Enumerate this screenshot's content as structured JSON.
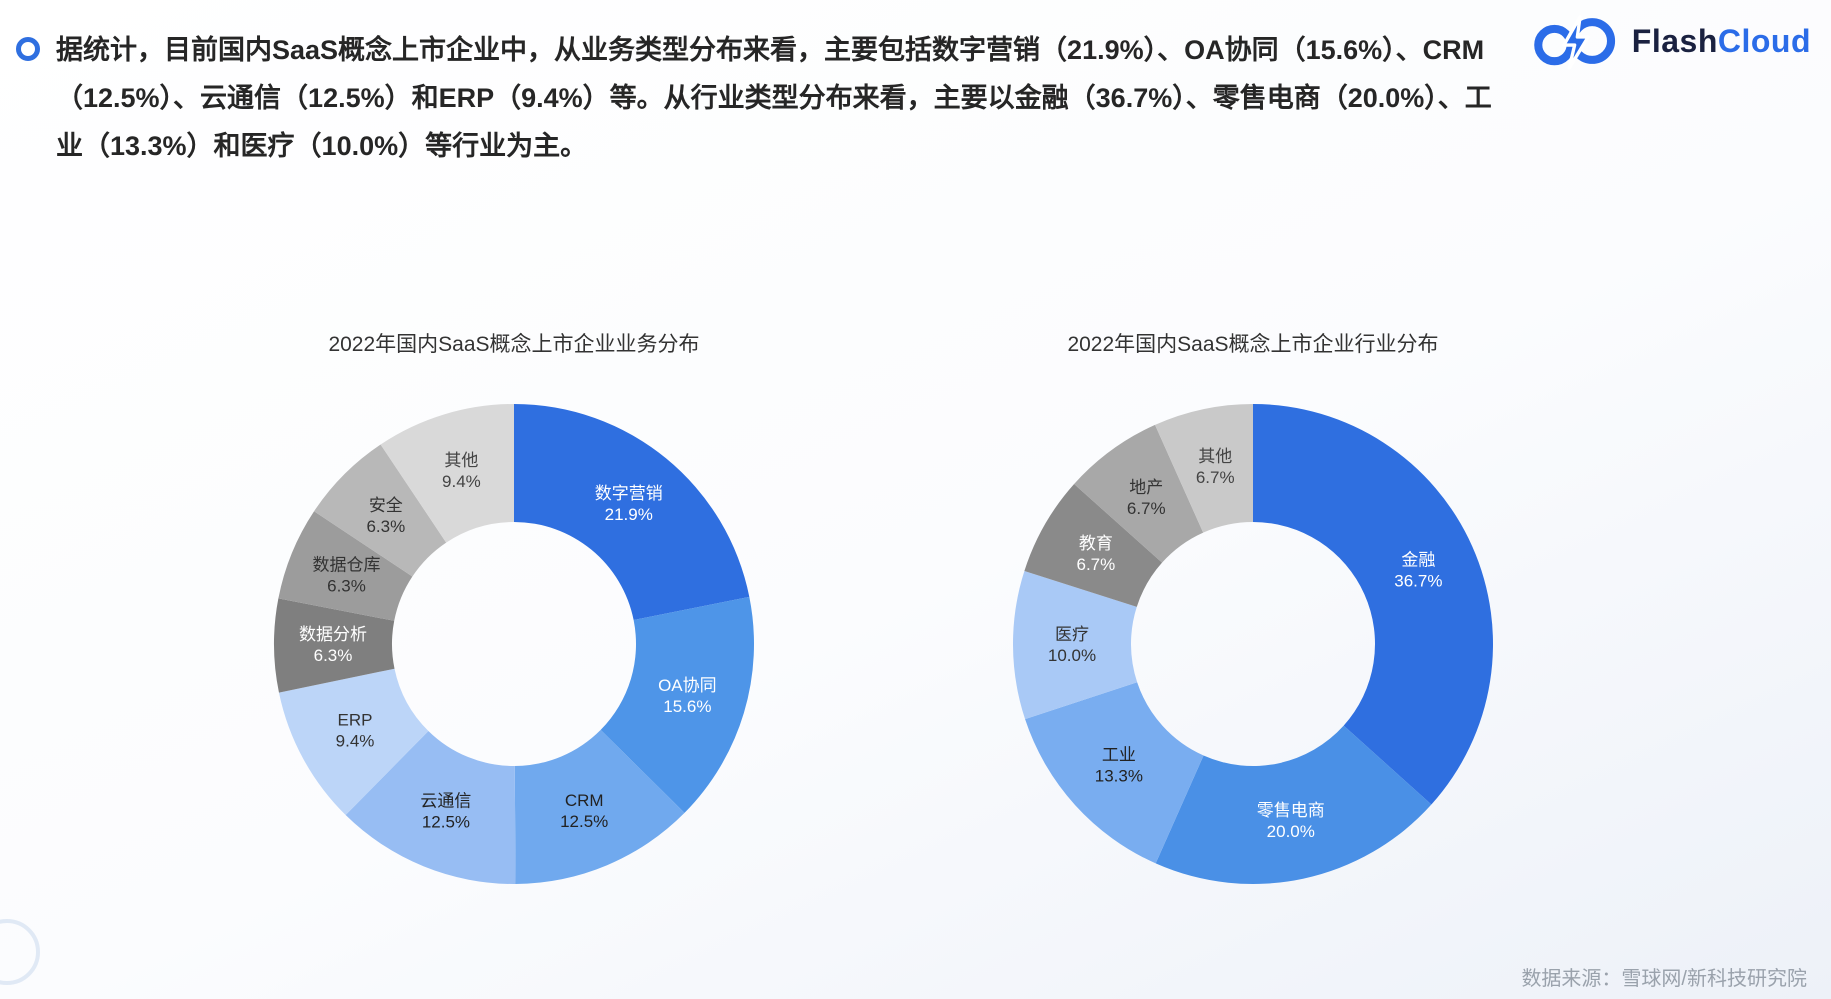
{
  "header": {
    "text": "据统计，目前国内SaaS概念上市企业中，从业务类型分布来看，主要包括数字营销（21.9%）、OA协同（15.6%）、CRM（12.5%）、云通信（12.5%）和ERP（9.4%）等。从行业类型分布来看，主要以金融（36.7%）、零售电商（20.0%）、工业（13.3%）和医疗（10.0%）等行业为主。"
  },
  "logo": {
    "flash": "Flash",
    "cloud": "Cloud",
    "accent_color": "#2b6ce8"
  },
  "chart_data": [
    {
      "type": "pie",
      "style": "donut",
      "title": "2022年国内SaaS概念上市企业业务分布",
      "categories": [
        "数字营销",
        "OA协同",
        "CRM",
        "云通信",
        "ERP",
        "数据分析",
        "数据仓库",
        "安全",
        "其他"
      ],
      "values": [
        21.9,
        15.6,
        12.5,
        12.5,
        9.4,
        6.3,
        6.3,
        6.3,
        9.4
      ],
      "labels": [
        "21.9%",
        "15.6%",
        "12.5%",
        "12.5%",
        "9.4%",
        "6.3%",
        "6.3%",
        "6.3%",
        "9.4%"
      ],
      "colors": [
        "#2f6fe0",
        "#4e95e8",
        "#70a9ee",
        "#97bdf3",
        "#bcd5f8",
        "#7f7f7f",
        "#9c9c9c",
        "#b8b8b8",
        "#d9d9d9"
      ],
      "label_colors": [
        "#ffffff",
        "#ffffff",
        "#222222",
        "#222222",
        "#333333",
        "#ffffff",
        "#333333",
        "#333333",
        "#444444"
      ],
      "legend": "off",
      "start_angle_deg": 0,
      "direction": "clockwise"
    },
    {
      "type": "pie",
      "style": "donut",
      "title": "2022年国内SaaS概念上市企业行业分布",
      "categories": [
        "金融",
        "零售电商",
        "工业",
        "医疗",
        "教育",
        "地产",
        "其他"
      ],
      "values": [
        36.7,
        20.0,
        13.3,
        10.0,
        6.7,
        6.7,
        6.7
      ],
      "labels": [
        "36.7%",
        "20.0%",
        "13.3%",
        "10.0%",
        "6.7%",
        "6.7%",
        "6.7%"
      ],
      "colors": [
        "#2f6fe0",
        "#4a90e6",
        "#79adf0",
        "#a9c9f6",
        "#8a8a8a",
        "#a8a8a8",
        "#c9c9c9"
      ],
      "label_colors": [
        "#ffffff",
        "#ffffff",
        "#222222",
        "#333333",
        "#ffffff",
        "#333333",
        "#444444"
      ],
      "legend": "off",
      "start_angle_deg": 0,
      "direction": "clockwise"
    }
  ],
  "footer": {
    "source": "数据来源：雪球网/新科技研究院"
  }
}
